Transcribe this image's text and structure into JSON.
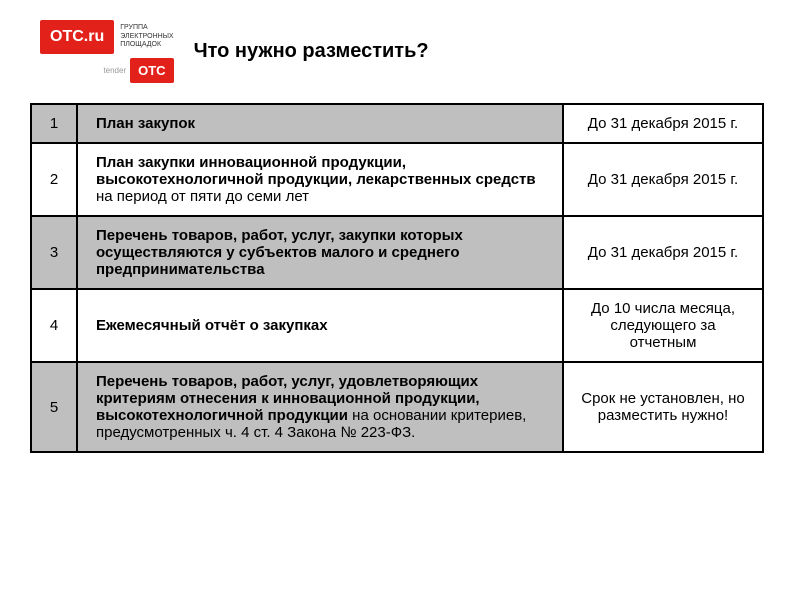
{
  "logo": {
    "main": "OTC.ru",
    "text_line1": "ГРУППА",
    "text_line2": "ЭЛЕКТРОННЫХ",
    "text_line3": "ПЛОЩАДОК",
    "tender_label": "tender",
    "tender": "OTC"
  },
  "title": "Что нужно разместить?",
  "colors": {
    "brand_red": "#e3211b",
    "gray_bg": "#bfbfbf",
    "border": "#000000",
    "white": "#ffffff"
  },
  "rows": [
    {
      "num": "1",
      "bold": "План закупок",
      "normal": "",
      "date": "До 31 декабря 2015 г.",
      "gray": true
    },
    {
      "num": "2",
      "bold": "План закупки инновационной продукции, высокотехнологичной продукции, лекарственных средств",
      "normal": " на период от пяти до семи лет",
      "date": "До 31 декабря 2015 г.",
      "gray": false
    },
    {
      "num": "3",
      "bold": "Перечень товаров, работ, услуг, закупки которых осуществляются у субъектов малого и среднего предпринимательства",
      "normal": "",
      "date": "До 31 декабря 2015 г.",
      "gray": true
    },
    {
      "num": "4",
      "bold": "Ежемесячный отчёт о закупках",
      "normal": "",
      "date": "До 10 числа месяца, следующего за отчетным",
      "gray": false
    },
    {
      "num": "5",
      "bold": "Перечень товаров, работ, услуг, удовлетворяющих критериям отнесения к инновационной продукции, высокотехнологичной продукции",
      "normal": " на основании критериев, предусмотренных ч. 4 ст. 4 Закона № 223-ФЗ.",
      "date": "Срок не установлен, но разместить нужно!",
      "gray": true
    }
  ]
}
